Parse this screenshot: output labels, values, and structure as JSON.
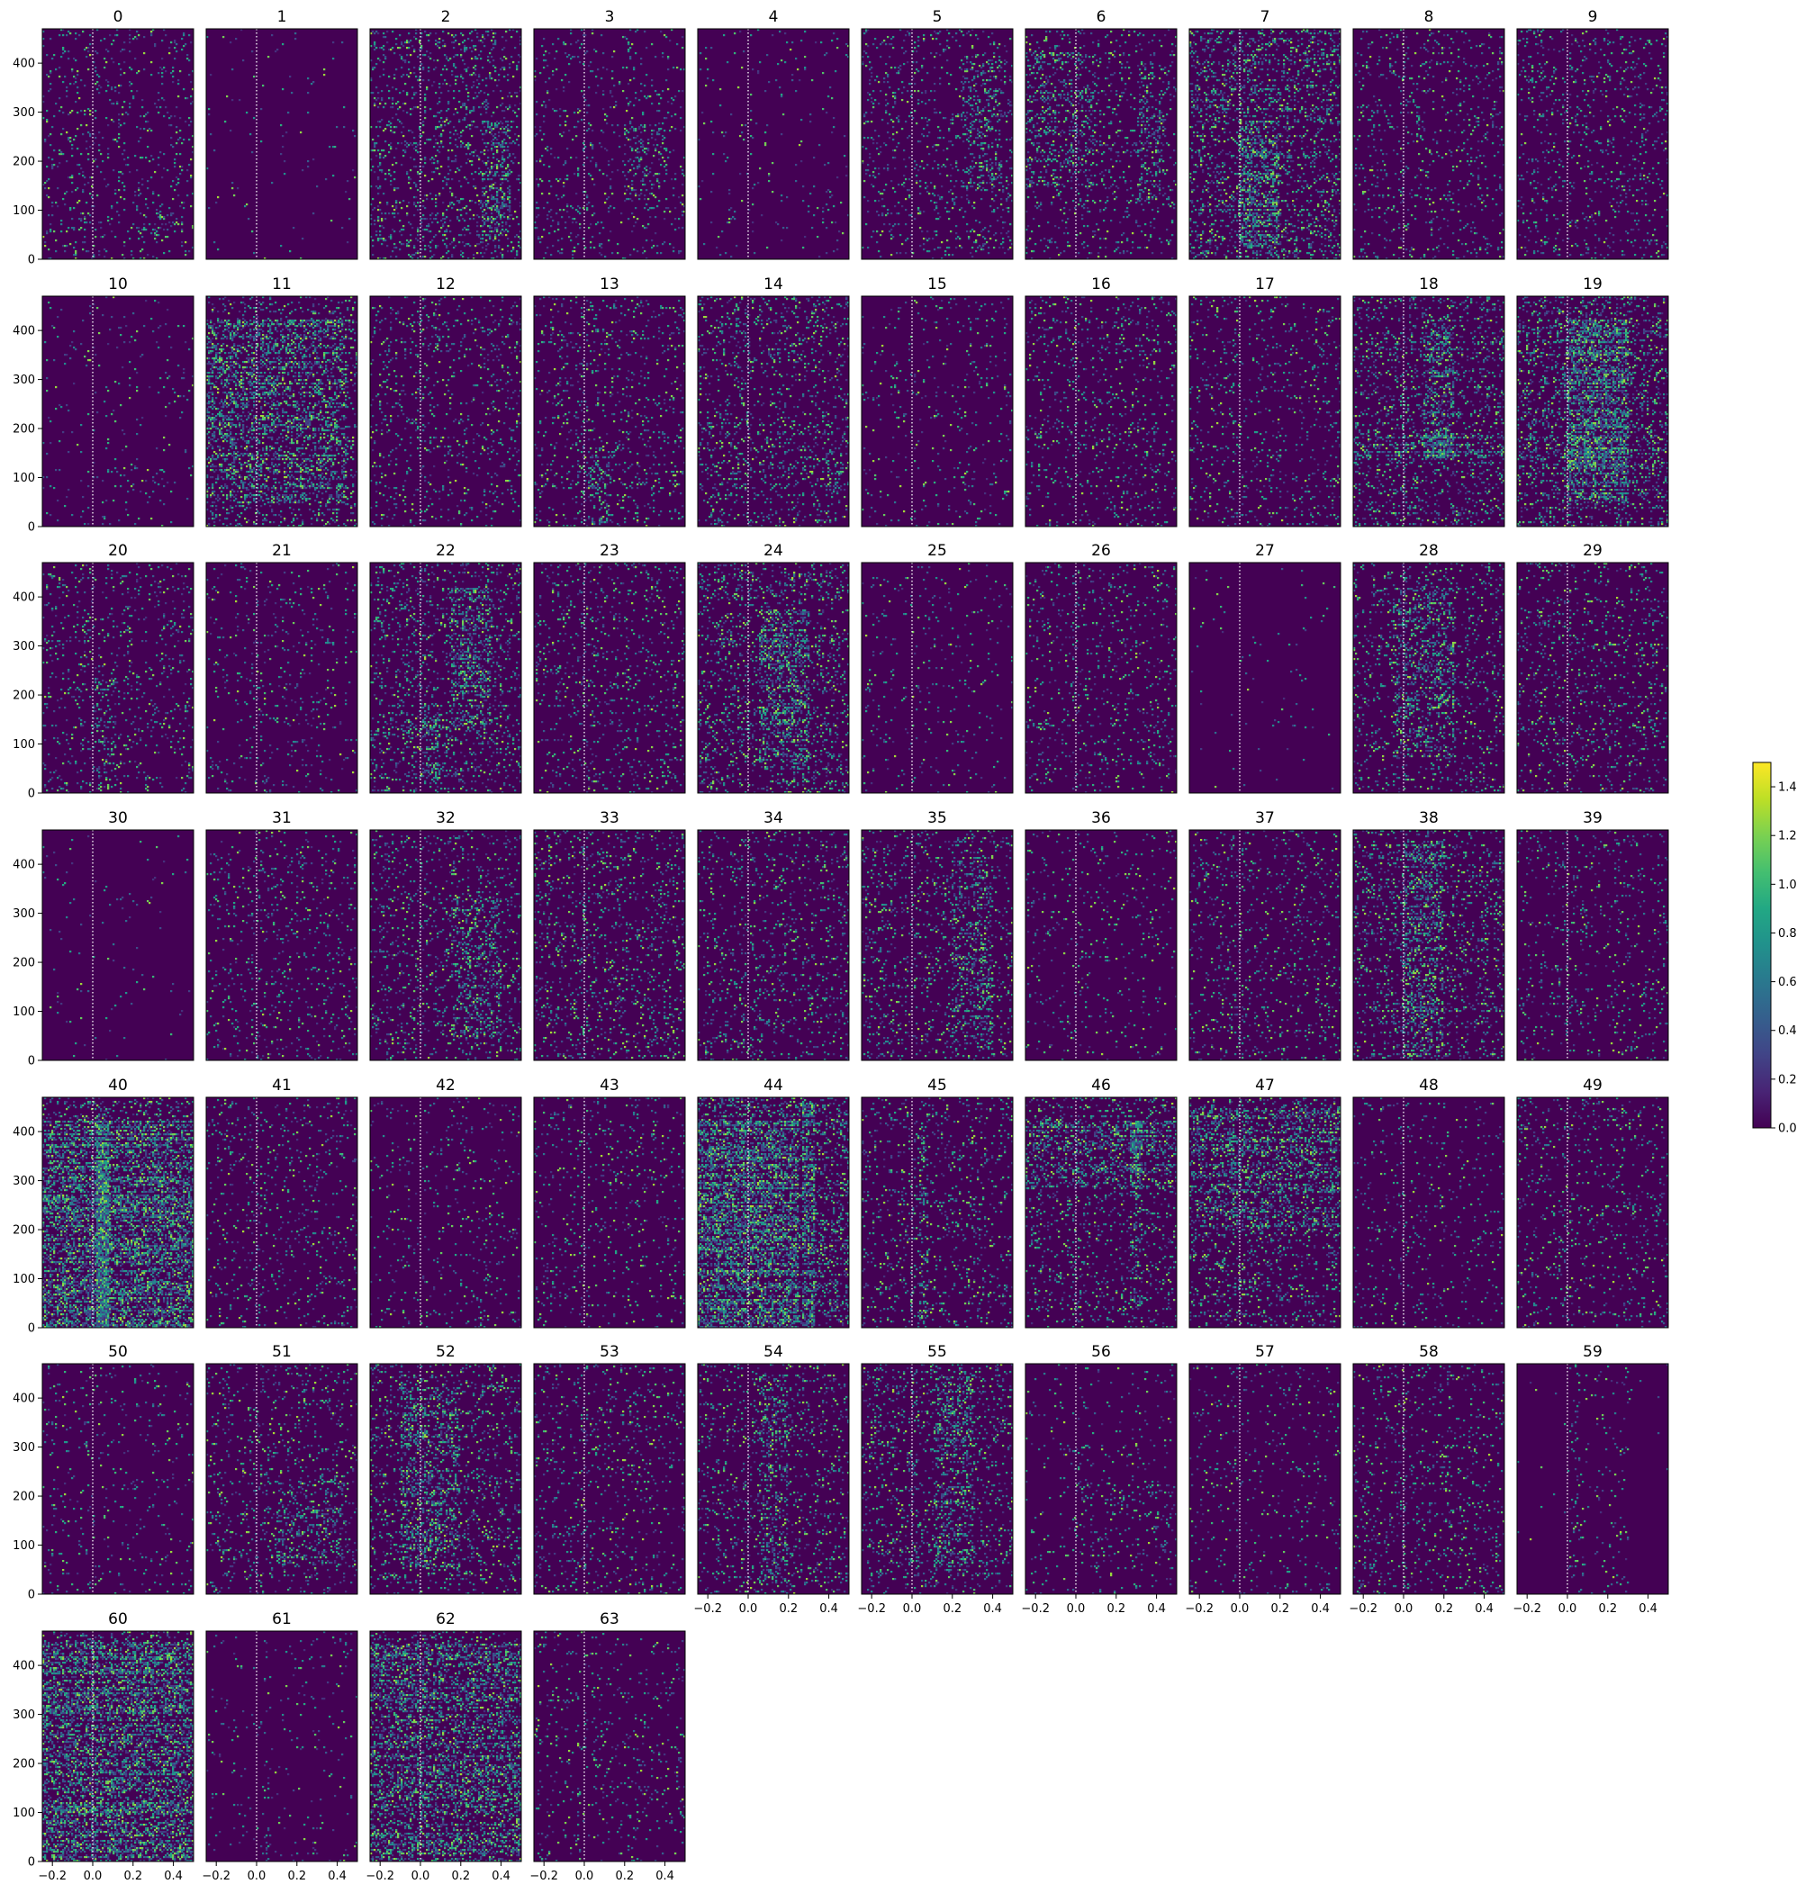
{
  "chart_data": {
    "type": "heatmap",
    "figure": "raster grid of 64 channel panels",
    "panel_titles": [
      "0",
      "1",
      "2",
      "3",
      "4",
      "5",
      "6",
      "7",
      "8",
      "9",
      "10",
      "11",
      "12",
      "13",
      "14",
      "15",
      "16",
      "17",
      "18",
      "19",
      "20",
      "21",
      "22",
      "23",
      "24",
      "25",
      "26",
      "27",
      "28",
      "29",
      "30",
      "31",
      "32",
      "33",
      "34",
      "35",
      "36",
      "37",
      "38",
      "39",
      "40",
      "41",
      "42",
      "43",
      "44",
      "45",
      "46",
      "47",
      "48",
      "49",
      "50",
      "51",
      "52",
      "53",
      "54",
      "55",
      "56",
      "57",
      "58",
      "59",
      "60",
      "61",
      "62",
      "63"
    ],
    "xlim": [
      -0.25,
      0.5
    ],
    "ylim": [
      0,
      470
    ],
    "x_ticks": [
      -0.2,
      0.0,
      0.2,
      0.4
    ],
    "x_tick_labels": [
      "−0.2",
      "0.0",
      "0.2",
      "0.4"
    ],
    "y_ticks": [
      0,
      100,
      200,
      300,
      400
    ],
    "y_tick_labels": [
      "0",
      "100",
      "200",
      "300",
      "400"
    ],
    "reference_line_x": 0.0,
    "colormap": "viridis",
    "colorbar": {
      "range": [
        0.0,
        1.5
      ],
      "ticks": [
        0.0,
        0.2,
        0.4,
        0.6,
        0.8,
        1.0,
        1.2,
        1.4
      ],
      "tick_labels": [
        "0.0",
        "0.2",
        "0.4",
        "0.6",
        "0.8",
        "1.0",
        "1.2",
        "1.4"
      ]
    },
    "background_color": "#440154",
    "grid": false,
    "legend": "none",
    "layout": {
      "columns": 10,
      "rows": 7
    },
    "panel_density": [
      0.06,
      0.008,
      0.12,
      0.06,
      0.02,
      0.07,
      0.07,
      0.16,
      0.07,
      0.07,
      0.025,
      0.12,
      0.07,
      0.07,
      0.12,
      0.03,
      0.07,
      0.07,
      0.13,
      0.18,
      0.07,
      0.045,
      0.13,
      0.07,
      0.13,
      0.03,
      0.06,
      0.006,
      0.09,
      0.08,
      0.01,
      0.06,
      0.08,
      0.09,
      0.08,
      0.09,
      0.04,
      0.07,
      0.12,
      0.05,
      0.16,
      0.06,
      0.04,
      0.045,
      0.18,
      0.08,
      0.1,
      0.11,
      0.04,
      0.07,
      0.04,
      0.08,
      0.1,
      0.07,
      0.09,
      0.1,
      0.025,
      0.04,
      0.07,
      0.03,
      0.15,
      0.02,
      0.12,
      0.05
    ],
    "panel_hotspots": [
      [
        [
          0.22,
          0.42,
          0.08,
          0.2
        ]
      ],
      [],
      [
        [
          0.3,
          0.45,
          0.1,
          0.6
        ]
      ],
      [
        [
          0.2,
          0.4,
          0.25,
          0.6
        ]
      ],
      [],
      [
        [
          0.25,
          0.45,
          0.3,
          0.9
        ]
      ],
      [
        [
          0.3,
          0.45,
          0.25,
          0.85
        ],
        [
          -0.25,
          0.1,
          0.3,
          0.9
        ]
      ],
      [
        [
          0.0,
          0.2,
          0.05,
          0.6
        ]
      ],
      [],
      [],
      [
        [
          0.15,
          0.35,
          0.1,
          0.3
        ]
      ],
      [
        [
          -0.25,
          0.45,
          0.1,
          0.9
        ]
      ],
      [],
      [
        [
          0.02,
          0.15,
          0.0,
          0.35
        ]
      ],
      [],
      [],
      [],
      [],
      [
        [
          -0.25,
          0.5,
          0.3,
          0.4
        ],
        [
          0.1,
          0.25,
          0.3,
          0.9
        ]
      ],
      [
        [
          0.0,
          0.3,
          0.1,
          0.9
        ]
      ],
      [
        [
          0.02,
          0.12,
          0.0,
          0.5
        ]
      ],
      [],
      [
        [
          0.15,
          0.35,
          0.3,
          0.9
        ],
        [
          0.0,
          0.1,
          0.02,
          0.4
        ]
      ],
      [],
      [
        [
          0.05,
          0.3,
          0.1,
          0.8
        ]
      ],
      [],
      [],
      [],
      [
        [
          -0.05,
          0.25,
          0.15,
          0.9
        ]
      ],
      [],
      [],
      [],
      [
        [
          0.15,
          0.4,
          0.1,
          0.7
        ]
      ],
      [],
      [],
      [
        [
          0.2,
          0.4,
          0.05,
          0.9
        ]
      ],
      [],
      [],
      [
        [
          0.0,
          0.2,
          0.0,
          0.95
        ]
      ],
      [],
      [
        [
          0.02,
          0.08,
          0.0,
          0.95
        ],
        [
          -0.25,
          0.5,
          0.0,
          0.9
        ]
      ],
      [],
      [
        [
          0.25,
          0.35,
          0.0,
          0.3
        ]
      ],
      [],
      [
        [
          0.27,
          0.33,
          0.0,
          0.98
        ],
        [
          -0.25,
          0.25,
          0.0,
          0.9
        ]
      ],
      [
        [
          0.04,
          0.08,
          0.0,
          0.9
        ]
      ],
      [
        [
          0.27,
          0.33,
          0.0,
          0.9
        ],
        [
          -0.25,
          0.5,
          0.6,
          0.9
        ]
      ],
      [
        [
          -0.25,
          0.5,
          0.4,
          0.95
        ]
      ],
      [],
      [],
      [],
      [
        [
          0.1,
          0.45,
          0.1,
          0.5
        ]
      ],
      [
        [
          -0.1,
          0.2,
          0.1,
          0.9
        ]
      ],
      [],
      [
        [
          0.05,
          0.2,
          0.05,
          0.95
        ]
      ],
      [
        [
          0.12,
          0.3,
          0.1,
          0.95
        ]
      ],
      [
        [
          0.0,
          0.5,
          0.1,
          0.5
        ]
      ],
      [],
      [],
      [
        [
          0.02,
          0.06,
          0.0,
          0.97
        ]
      ],
      [
        [
          -0.25,
          0.5,
          0.0,
          0.95
        ]
      ],
      [
        [
          0.28,
          0.3,
          0.0,
          0.98
        ],
        [
          0.04,
          0.06,
          0.0,
          0.98
        ]
      ],
      [
        [
          -0.25,
          0.5,
          0.0,
          0.95
        ]
      ],
      []
    ],
    "panel_quiet_regions": [
      [],
      [],
      [],
      [],
      [],
      [],
      [],
      [],
      [],
      [],
      [],
      [],
      [],
      [],
      [],
      [],
      [],
      [],
      [],
      [],
      [],
      [],
      [],
      [],
      [],
      [],
      [],
      [],
      [],
      [],
      [],
      [],
      [],
      [],
      [],
      [],
      [],
      [],
      [],
      [],
      [],
      [],
      [],
      [],
      [],
      [],
      [],
      [],
      [],
      [],
      [],
      [],
      [],
      [],
      [],
      [],
      [],
      [],
      [],
      [
        [
          -0.25,
          0.0
        ],
        [
          0.3,
          0.5
        ]
      ],
      [],
      [],
      [],
      []
    ]
  }
}
